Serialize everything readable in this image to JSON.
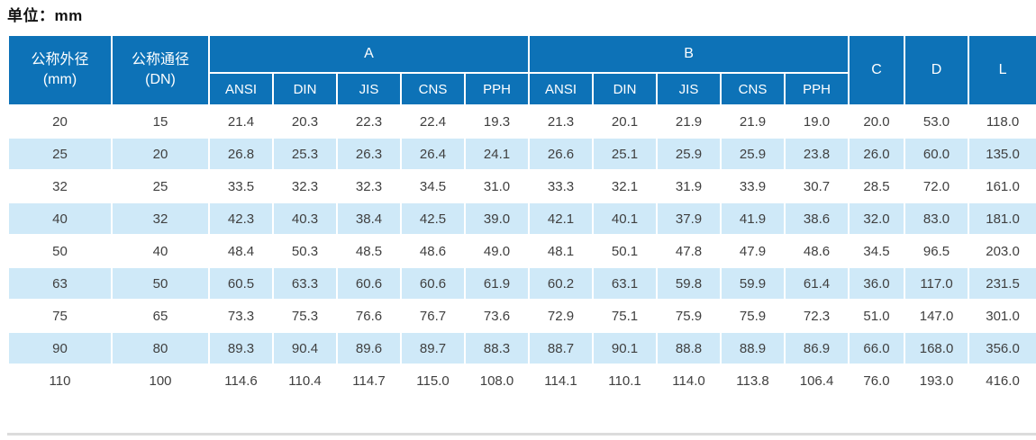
{
  "page": {
    "unit_label": "单位：mm"
  },
  "colors": {
    "header_bg": "#0d72b7",
    "row_alt_bg": "#cfe9f8",
    "row_bg": "#ffffff",
    "header_text": "#ffffff",
    "body_text": "#404040",
    "bottom_rule": "#dcdcdc"
  },
  "table": {
    "header": {
      "col1_line1": "公称外径",
      "col1_line2": "(mm)",
      "col2_line1": "公称通径",
      "col2_line2": "(DN)",
      "group_a": "A",
      "group_b": "B",
      "standards": [
        "ANSI",
        "DIN",
        "JIS",
        "CNS",
        "PPH"
      ],
      "col_c": "C",
      "col_d": "D",
      "col_l": "L"
    },
    "rows": [
      [
        "20",
        "15",
        "21.4",
        "20.3",
        "22.3",
        "22.4",
        "19.3",
        "21.3",
        "20.1",
        "21.9",
        "21.9",
        "19.0",
        "20.0",
        "53.0",
        "118.0"
      ],
      [
        "25",
        "20",
        "26.8",
        "25.3",
        "26.3",
        "26.4",
        "24.1",
        "26.6",
        "25.1",
        "25.9",
        "25.9",
        "23.8",
        "26.0",
        "60.0",
        "135.0"
      ],
      [
        "32",
        "25",
        "33.5",
        "32.3",
        "32.3",
        "34.5",
        "31.0",
        "33.3",
        "32.1",
        "31.9",
        "33.9",
        "30.7",
        "28.5",
        "72.0",
        "161.0"
      ],
      [
        "40",
        "32",
        "42.3",
        "40.3",
        "38.4",
        "42.5",
        "39.0",
        "42.1",
        "40.1",
        "37.9",
        "41.9",
        "38.6",
        "32.0",
        "83.0",
        "181.0"
      ],
      [
        "50",
        "40",
        "48.4",
        "50.3",
        "48.5",
        "48.6",
        "49.0",
        "48.1",
        "50.1",
        "47.8",
        "47.9",
        "48.6",
        "34.5",
        "96.5",
        "203.0"
      ],
      [
        "63",
        "50",
        "60.5",
        "63.3",
        "60.6",
        "60.6",
        "61.9",
        "60.2",
        "63.1",
        "59.8",
        "59.9",
        "61.4",
        "36.0",
        "117.0",
        "231.5"
      ],
      [
        "75",
        "65",
        "73.3",
        "75.3",
        "76.6",
        "76.7",
        "73.6",
        "72.9",
        "75.1",
        "75.9",
        "75.9",
        "72.3",
        "51.0",
        "147.0",
        "301.0"
      ],
      [
        "90",
        "80",
        "89.3",
        "90.4",
        "89.6",
        "89.7",
        "88.3",
        "88.7",
        "90.1",
        "88.8",
        "88.9",
        "86.9",
        "66.0",
        "168.0",
        "356.0"
      ],
      [
        "110",
        "100",
        "114.6",
        "110.4",
        "114.7",
        "115.0",
        "108.0",
        "114.1",
        "110.1",
        "114.0",
        "113.8",
        "106.4",
        "76.0",
        "193.0",
        "416.0"
      ]
    ]
  }
}
